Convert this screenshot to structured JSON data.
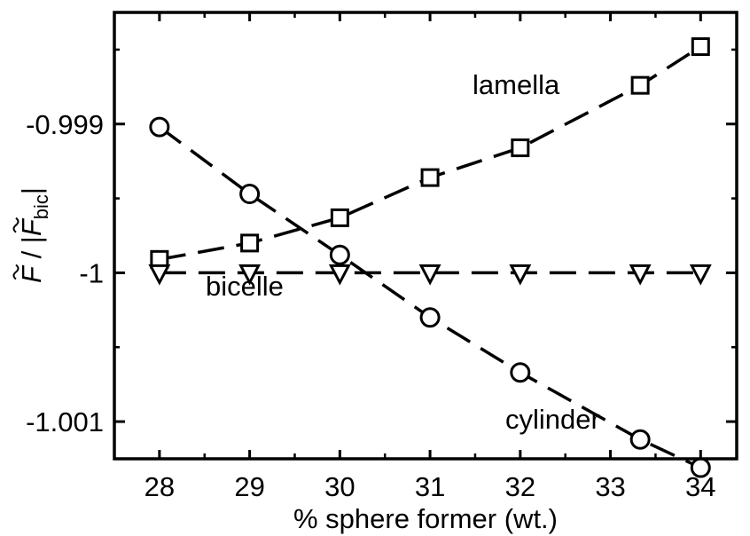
{
  "chart_data": {
    "type": "line",
    "xlabel": "% sphere former (wt.)",
    "ylabel": {
      "main": "F",
      "slash": " / |",
      "sub_base": "F",
      "subscript": "bic",
      "close": "|"
    },
    "xlim": [
      27.5,
      34.4
    ],
    "ylim": [
      -1.00125,
      -0.99825
    ],
    "x_ticks": [
      28,
      29,
      30,
      31,
      32,
      33,
      34
    ],
    "x_tick_labels": [
      "28",
      "29",
      "30",
      "31",
      "32",
      "33",
      "34"
    ],
    "y_ticks": [
      -0.999,
      -1,
      -1.001
    ],
    "y_tick_labels": [
      "-0.999",
      "-1",
      "-1.001"
    ],
    "grid": false,
    "legend": "none",
    "series": [
      {
        "name": "lamella",
        "marker": "square",
        "x": [
          28,
          29,
          30,
          31,
          32,
          33.33,
          34
        ],
        "y": [
          -0.99991,
          -0.9998,
          -0.99963,
          -0.99936,
          -0.99916,
          -0.99874,
          -0.99848
        ]
      },
      {
        "name": "bicelle",
        "marker": "triangle-down",
        "x": [
          28,
          29,
          30,
          31,
          32,
          33.33,
          34
        ],
        "y": [
          -1.0,
          -1.0,
          -1.0,
          -1.0,
          -1.0,
          -1.0,
          -1.0
        ]
      },
      {
        "name": "cylinder",
        "marker": "circle",
        "x": [
          28,
          29,
          30,
          31,
          32,
          33.33,
          34
        ],
        "y": [
          -0.99902,
          -0.99947,
          -0.99988,
          -1.0003,
          -1.00067,
          -1.00112,
          -1.00131
        ]
      }
    ],
    "annotations": [
      "lamella",
      "bicelle",
      "cylinder"
    ]
  }
}
